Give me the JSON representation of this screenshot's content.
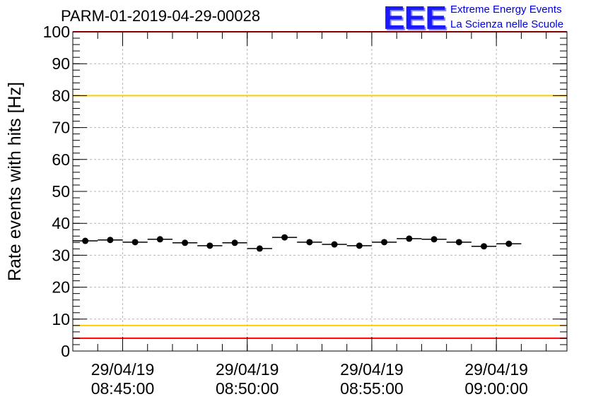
{
  "title": "PARM-01-2019-04-29-00028",
  "logo": {
    "mark": "EEE",
    "line1": "Extreme Energy Events",
    "line2": "La Scienza nelle Scuole"
  },
  "colors": {
    "red_line": "#ff0000",
    "yellow_line": "#ffcc00",
    "logo_blue": "#1a1aff"
  },
  "chart_data": {
    "type": "scatter",
    "title": "PARM-01-2019-04-29-00028",
    "xlabel": "",
    "ylabel": "Rate events with hits [Hz]",
    "ylim": [
      0,
      100
    ],
    "yticks": [
      0,
      10,
      20,
      30,
      40,
      50,
      60,
      70,
      80,
      90,
      100
    ],
    "x_tick_labels": [
      {
        "date": "29/04/19",
        "time": "08:45:00"
      },
      {
        "date": "29/04/19",
        "time": "08:50:00"
      },
      {
        "date": "29/04/19",
        "time": "08:55:00"
      },
      {
        "date": "29/04/19",
        "time": "09:00:00"
      }
    ],
    "x_time_range": [
      "08:43:00",
      "09:02:50"
    ],
    "x_minor_tick_interval_minutes": 1,
    "bin_width_minutes": 1,
    "grid": true,
    "reference_lines": [
      {
        "y": 100,
        "color": "red"
      },
      {
        "y": 80,
        "color": "yellow"
      },
      {
        "y": 8,
        "color": "yellow"
      },
      {
        "y": 4,
        "color": "red"
      }
    ],
    "points": [
      {
        "x": "08:43:30",
        "y": 34.5
      },
      {
        "x": "08:44:30",
        "y": 34.8
      },
      {
        "x": "08:45:30",
        "y": 34.1
      },
      {
        "x": "08:46:30",
        "y": 35.0
      },
      {
        "x": "08:47:30",
        "y": 33.9
      },
      {
        "x": "08:48:30",
        "y": 33.0
      },
      {
        "x": "08:49:30",
        "y": 33.9
      },
      {
        "x": "08:50:30",
        "y": 32.1
      },
      {
        "x": "08:51:30",
        "y": 35.6
      },
      {
        "x": "08:52:30",
        "y": 34.1
      },
      {
        "x": "08:53:30",
        "y": 33.4
      },
      {
        "x": "08:54:30",
        "y": 33.0
      },
      {
        "x": "08:55:30",
        "y": 34.1
      },
      {
        "x": "08:56:30",
        "y": 35.2
      },
      {
        "x": "08:57:30",
        "y": 35.0
      },
      {
        "x": "08:58:30",
        "y": 34.1
      },
      {
        "x": "08:59:30",
        "y": 32.8
      },
      {
        "x": "09:00:30",
        "y": 33.6
      }
    ]
  }
}
